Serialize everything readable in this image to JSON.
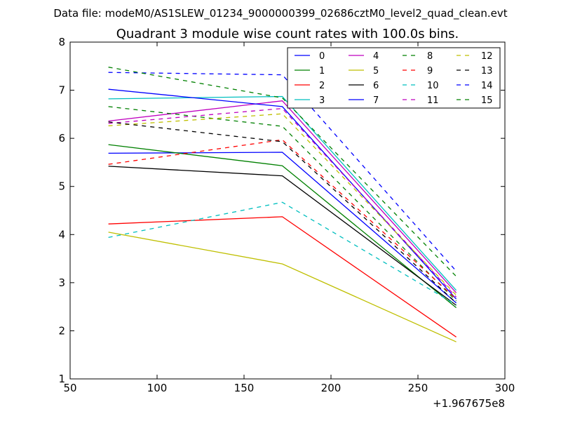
{
  "suptitle": "Data file: modeM0/AS1SLEW_01234_9000000399_02686cztM0_level2_quad_clean.evt",
  "chart_data": {
    "type": "line",
    "title": "Quadrant 3 module wise count rates with 100.0s bins.",
    "xlabel": "",
    "ylabel": "",
    "x_offset_label": "+1.967675e8",
    "xlim": [
      50,
      300
    ],
    "ylim": [
      1,
      8
    ],
    "xticks": [
      50,
      100,
      150,
      200,
      250,
      300
    ],
    "yticks": [
      1,
      2,
      3,
      4,
      5,
      6,
      7,
      8
    ],
    "x": [
      72,
      172,
      272
    ],
    "legend_position": "top-right",
    "series": [
      {
        "name": "0",
        "color": "#0000ff",
        "dash": "solid",
        "values": [
          5.69,
          5.71,
          2.58
        ]
      },
      {
        "name": "1",
        "color": "#008000",
        "dash": "solid",
        "values": [
          5.87,
          5.43,
          2.48
        ]
      },
      {
        "name": "2",
        "color": "#ff0000",
        "dash": "solid",
        "values": [
          4.22,
          4.37,
          1.87
        ]
      },
      {
        "name": "3",
        "color": "#00bfbf",
        "dash": "solid",
        "values": [
          6.82,
          6.87,
          2.84
        ]
      },
      {
        "name": "4",
        "color": "#bf00bf",
        "dash": "solid",
        "values": [
          6.36,
          6.78,
          2.79
        ]
      },
      {
        "name": "5",
        "color": "#bfbf00",
        "dash": "solid",
        "values": [
          4.05,
          3.39,
          1.77
        ]
      },
      {
        "name": "6",
        "color": "#000000",
        "dash": "solid",
        "values": [
          5.42,
          5.22,
          2.53
        ]
      },
      {
        "name": "7",
        "color": "#0000ff",
        "dash": "solid",
        "values": [
          7.02,
          6.66,
          2.66
        ]
      },
      {
        "name": "8",
        "color": "#008000",
        "dash": "dashed",
        "values": [
          6.66,
          6.25,
          2.62
        ]
      },
      {
        "name": "9",
        "color": "#ff0000",
        "dash": "dashed",
        "values": [
          5.46,
          5.97,
          2.66
        ]
      },
      {
        "name": "10",
        "color": "#00bfbf",
        "dash": "dashed",
        "values": [
          3.94,
          4.67,
          2.54
        ]
      },
      {
        "name": "11",
        "color": "#bf00bf",
        "dash": "dashed",
        "values": [
          6.31,
          6.62,
          2.7
        ]
      },
      {
        "name": "12",
        "color": "#bfbf00",
        "dash": "dashed",
        "values": [
          6.26,
          6.51,
          2.74
        ]
      },
      {
        "name": "13",
        "color": "#000000",
        "dash": "dashed",
        "values": [
          6.34,
          5.93,
          2.58
        ]
      },
      {
        "name": "14",
        "color": "#0000ff",
        "dash": "dashed",
        "values": [
          7.37,
          7.32,
          3.24
        ]
      },
      {
        "name": "15",
        "color": "#008000",
        "dash": "dashed",
        "values": [
          7.48,
          6.84,
          3.13
        ]
      }
    ]
  }
}
